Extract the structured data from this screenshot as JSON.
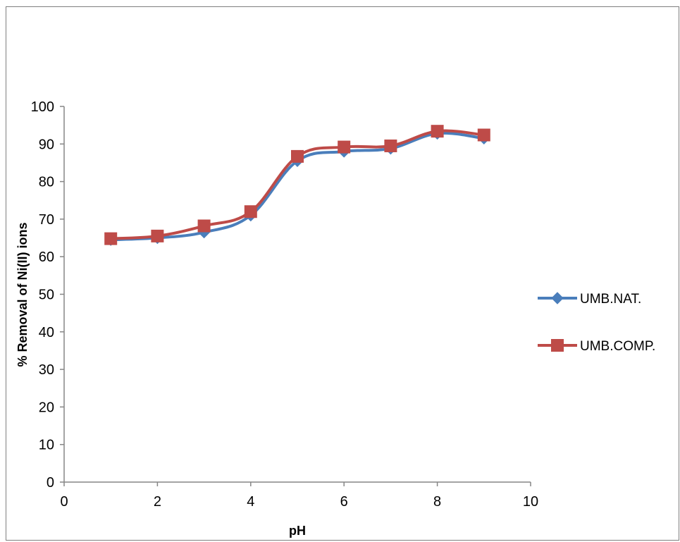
{
  "chart_data": {
    "type": "line",
    "smooth": true,
    "title": "",
    "xlabel": "pH",
    "ylabel": "% Removal of Ni(II) ions",
    "xlim": [
      0,
      10
    ],
    "ylim": [
      0,
      100
    ],
    "x_ticks": [
      0,
      2,
      4,
      6,
      8,
      10
    ],
    "y_ticks": [
      0,
      10,
      20,
      30,
      40,
      50,
      60,
      70,
      80,
      90,
      100
    ],
    "grid": false,
    "legend_position": "right",
    "series": [
      {
        "name": "UMB.NAT.",
        "color": "#4a7ebb",
        "marker": "diamond",
        "x": [
          1,
          2,
          3,
          4,
          5,
          6,
          7,
          8,
          9
        ],
        "y": [
          64.5,
          65.0,
          66.5,
          71.0,
          85.5,
          88.0,
          88.8,
          92.8,
          91.5
        ]
      },
      {
        "name": "UMB.COMP.",
        "color": "#be4b48",
        "marker": "square",
        "x": [
          1,
          2,
          3,
          4,
          5,
          6,
          7,
          8,
          9
        ],
        "y": [
          64.8,
          65.5,
          68.2,
          72.0,
          86.7,
          89.2,
          89.5,
          93.4,
          92.4
        ]
      }
    ]
  }
}
